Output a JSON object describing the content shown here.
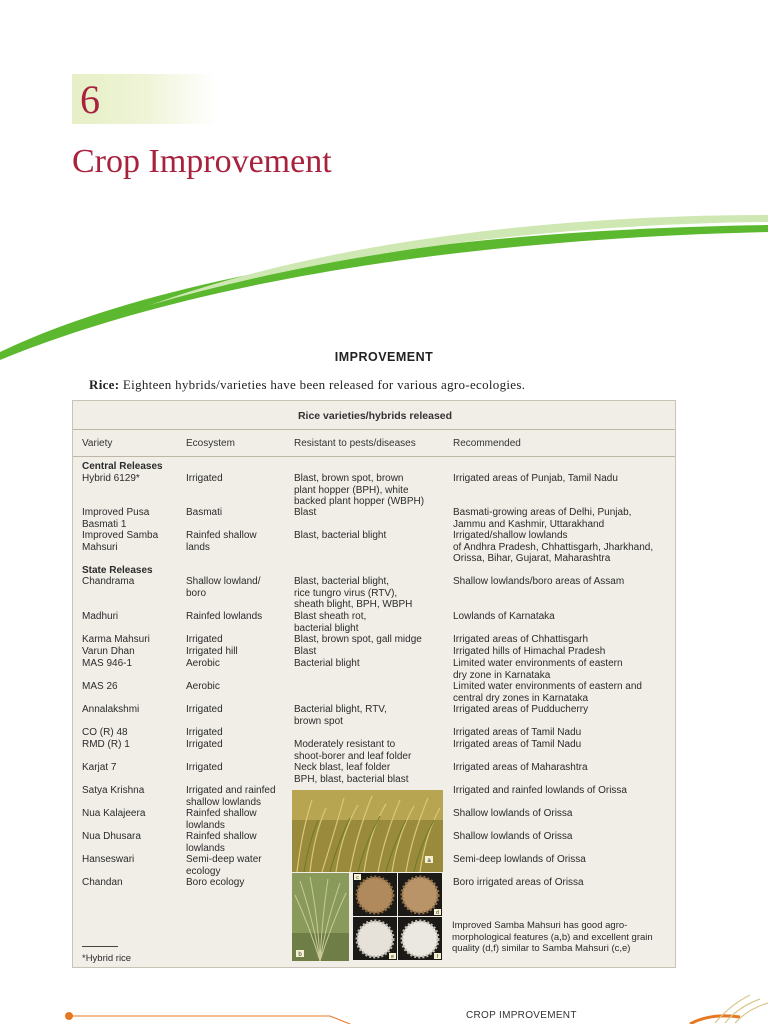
{
  "chapter": {
    "number": "6",
    "title": "Crop Improvement"
  },
  "section": {
    "heading": "IMPROVEMENT"
  },
  "intro": {
    "lead": "Rice:",
    "text": " Eighteen hybrids/varieties have been released for various agro-ecologies."
  },
  "table": {
    "title": "Rice varieties/hybrids released",
    "headers": [
      "Variety",
      "Ecosystem",
      "Resistant to pests/diseases",
      "Recommended"
    ],
    "groups": {
      "central": "Central Releases",
      "state": "State Releases"
    },
    "rows": [
      {
        "variety": "Hybrid 6129*",
        "eco": "Irrigated",
        "res": "Blast, brown spot, brown\nplant hopper (BPH), white\nbacked plant hopper (WBPH)",
        "rec": "Irrigated areas of Punjab, Tamil Nadu"
      },
      {
        "variety": "Improved Pusa\nBasmati 1",
        "eco": "Basmati",
        "res": "Blast",
        "rec": "Basmati-growing areas of Delhi, Punjab,\nJammu and Kashmir, Uttarakhand"
      },
      {
        "variety": "Improved Samba\nMahsuri",
        "eco": "Rainfed shallow\nlands",
        "res": "Blast, bacterial blight",
        "rec": "Irrigated/shallow lowlands\nof Andhra Pradesh, Chhattisgarh, Jharkhand,\nOrissa, Bihar, Gujarat, Maharashtra"
      },
      {
        "variety": "Chandrama",
        "eco": "Shallow lowland/\nboro",
        "res": "Blast, bacterial blight,\nrice tungro virus (RTV),\nsheath blight, BPH, WBPH",
        "rec": "Shallow lowlands/boro areas of Assam"
      },
      {
        "variety": "Madhuri",
        "eco": "Rainfed lowlands",
        "res": "Blast sheath rot,\nbacterial blight",
        "rec": "Lowlands of Karnataka"
      },
      {
        "variety": "Karma Mahsuri",
        "eco": "Irrigated",
        "res": "Blast, brown spot, gall midge",
        "rec": "Irrigated areas of Chhattisgarh"
      },
      {
        "variety": "Varun Dhan",
        "eco": "Irrigated hill",
        "res": "Blast",
        "rec": "Irrigated hills of Himachal Pradesh"
      },
      {
        "variety": "MAS 946-1",
        "eco": "Aerobic",
        "res": "Bacterial blight",
        "rec": "Limited water environments of eastern\ndry zone in Karnataka"
      },
      {
        "variety": "MAS 26",
        "eco": "Aerobic",
        "res": "",
        "rec": "Limited water environments of eastern and\ncentral dry zones in Karnataka"
      },
      {
        "variety": "Annalakshmi",
        "eco": "Irrigated",
        "res": "Bacterial blight, RTV,\nbrown spot",
        "rec": "Irrigated areas of Pudducherry"
      },
      {
        "variety": "CO (R) 48",
        "eco": "Irrigated",
        "res": "",
        "rec": "Irrigated areas of Tamil Nadu"
      },
      {
        "variety": "RMD (R) 1",
        "eco": "Irrigated",
        "res": "Moderately resistant to\nshoot-borer and leaf folder",
        "rec": "Irrigated areas of Tamil Nadu"
      },
      {
        "variety": "Karjat 7",
        "eco": "Irrigated",
        "res": "Neck blast, leaf folder\nBPH, blast, bacterial blast",
        "rec": "Irrigated areas of Maharashtra"
      },
      {
        "variety": "Satya Krishna",
        "eco": "Irrigated and rainfed\nshallow lowlands",
        "res": "",
        "rec": "Irrigated and rainfed lowlands of Orissa"
      },
      {
        "variety": "Nua Kalajeera",
        "eco": "Rainfed shallow\nlowlands",
        "res": "",
        "rec": "Shallow lowlands of Orissa"
      },
      {
        "variety": "Nua Dhusara",
        "eco": "Rainfed shallow\nlowlands",
        "res": "",
        "rec": "Shallow lowlands of Orissa"
      },
      {
        "variety": "Hanseswari",
        "eco": "Semi-deep water\necology",
        "res": "",
        "rec": "Semi-deep lowlands of Orissa"
      },
      {
        "variety": "Chandan",
        "eco": "Boro ecology",
        "res": "",
        "rec": "Boro irrigated areas of Orissa"
      }
    ],
    "photo_labels": {
      "a": "a",
      "b": "b",
      "c": "c",
      "d": "d",
      "e": "e",
      "f": "f"
    },
    "caption": "Improved Samba Mahsuri has good agro-morphological features (a,b) and excellent grain quality (d,f) similar to Samba Mahsuri (c,e)",
    "footnote": "*Hybrid rice"
  },
  "footer": {
    "running_head": "CROP IMPROVEMENT"
  },
  "colors": {
    "accent": "#a8213d",
    "green": "#5cb82e",
    "orange": "#e87722",
    "table_bg": "#f1eee7"
  }
}
